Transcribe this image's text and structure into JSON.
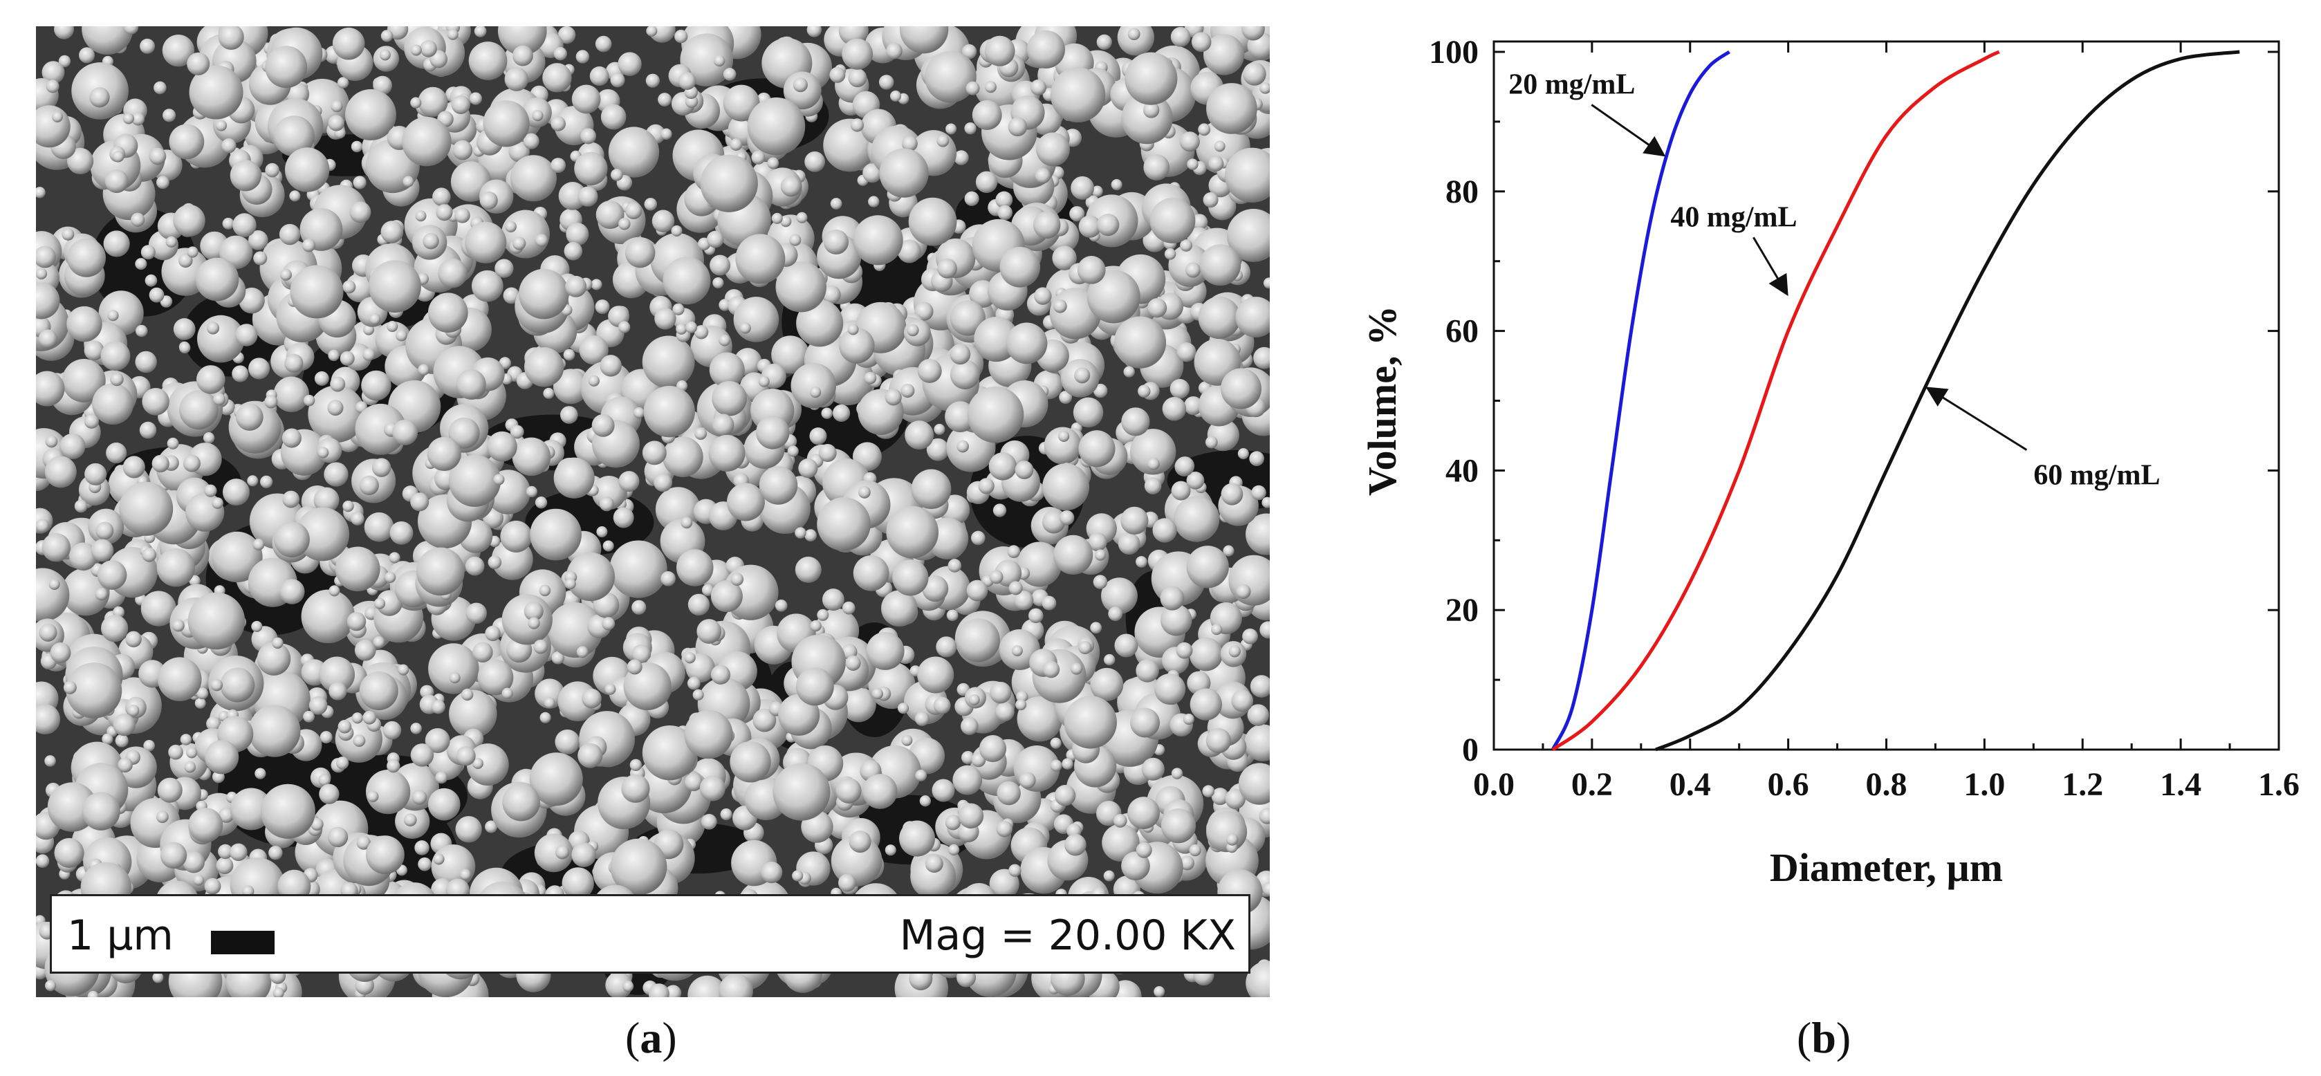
{
  "panel_a": {
    "scale_label": "1 µm",
    "mag_label": "Mag = 20.00 KX",
    "caption": "a"
  },
  "panel_b": {
    "caption": "b"
  },
  "chart_data": {
    "type": "line",
    "title": "",
    "xlabel": "Diameter, µm",
    "ylabel": "Volume, %",
    "xlim": [
      0.0,
      1.6
    ],
    "ylim": [
      0,
      100
    ],
    "xticks": [
      "0.0",
      "0.2",
      "0.4",
      "0.6",
      "0.8",
      "1.0",
      "1.2",
      "1.4",
      "1.6"
    ],
    "yticks": [
      "0",
      "20",
      "40",
      "60",
      "80",
      "100"
    ],
    "grid": false,
    "series": [
      {
        "name": "20 mg/mL",
        "color": "#1a1adc",
        "x": [
          0.12,
          0.16,
          0.2,
          0.24,
          0.28,
          0.32,
          0.36,
          0.4,
          0.44,
          0.48
        ],
        "y": [
          0,
          6,
          20,
          40,
          60,
          76,
          87,
          94,
          98,
          100
        ]
      },
      {
        "name": "40 mg/mL",
        "color": "#e81818",
        "x": [
          0.12,
          0.2,
          0.3,
          0.4,
          0.5,
          0.6,
          0.7,
          0.8,
          0.9,
          1.0,
          1.03
        ],
        "y": [
          0,
          4,
          12,
          24,
          40,
          60,
          75,
          88,
          95,
          99,
          100
        ]
      },
      {
        "name": "60 mg/mL",
        "color": "#111111",
        "x": [
          0.33,
          0.4,
          0.5,
          0.6,
          0.7,
          0.8,
          0.9,
          1.0,
          1.1,
          1.2,
          1.3,
          1.4,
          1.52
        ],
        "y": [
          0,
          2,
          6,
          14,
          25,
          40,
          55,
          69,
          81,
          90,
          96,
          99,
          100
        ]
      }
    ],
    "annotations": [
      {
        "text": "20 mg/mL",
        "series": 0,
        "target": [
          0.35,
          85
        ],
        "label_at": [
          0.03,
          94
        ]
      },
      {
        "text": "40 mg/mL",
        "series": 1,
        "target": [
          0.6,
          65
        ],
        "label_at": [
          0.36,
          75
        ]
      },
      {
        "text": "60 mg/mL",
        "series": 2,
        "target": [
          0.88,
          52
        ],
        "label_at": [
          1.1,
          38
        ]
      }
    ]
  }
}
